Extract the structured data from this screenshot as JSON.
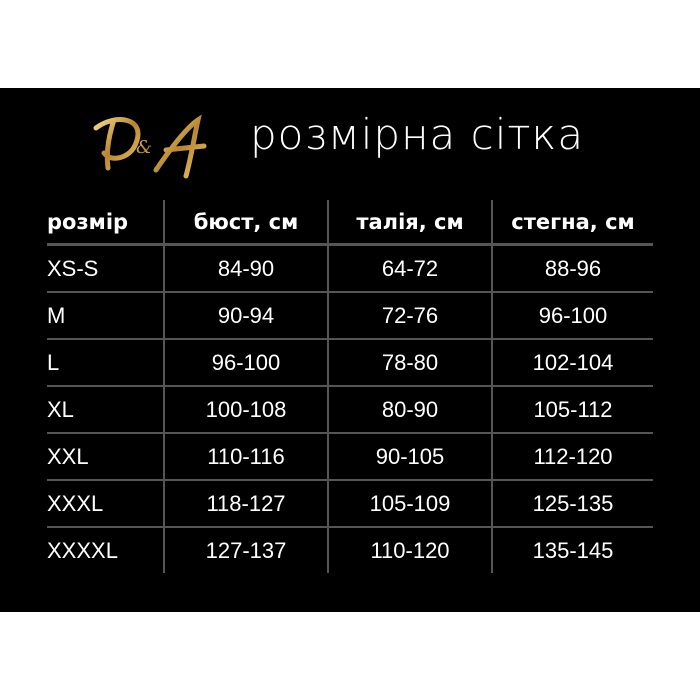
{
  "logo": {
    "text": "D&A",
    "color": "#c9a24a"
  },
  "title": "розмірна сітка",
  "table": {
    "headers": [
      "розмір",
      "бюст, см",
      "талія, см",
      "стегна, см"
    ],
    "rows": [
      [
        "XS-S",
        "84-90",
        "64-72",
        "88-96"
      ],
      [
        "M",
        "90-94",
        "72-76",
        "96-100"
      ],
      [
        "L",
        "96-100",
        "78-80",
        "102-104"
      ],
      [
        "XL",
        "100-108",
        "80-90",
        "105-112"
      ],
      [
        "XXL",
        "110-116",
        "90-105",
        "112-120"
      ],
      [
        "XXXL",
        "118-127",
        "105-109",
        "125-135"
      ],
      [
        "XXXXL",
        "127-137",
        "110-120",
        "135-145"
      ]
    ]
  }
}
